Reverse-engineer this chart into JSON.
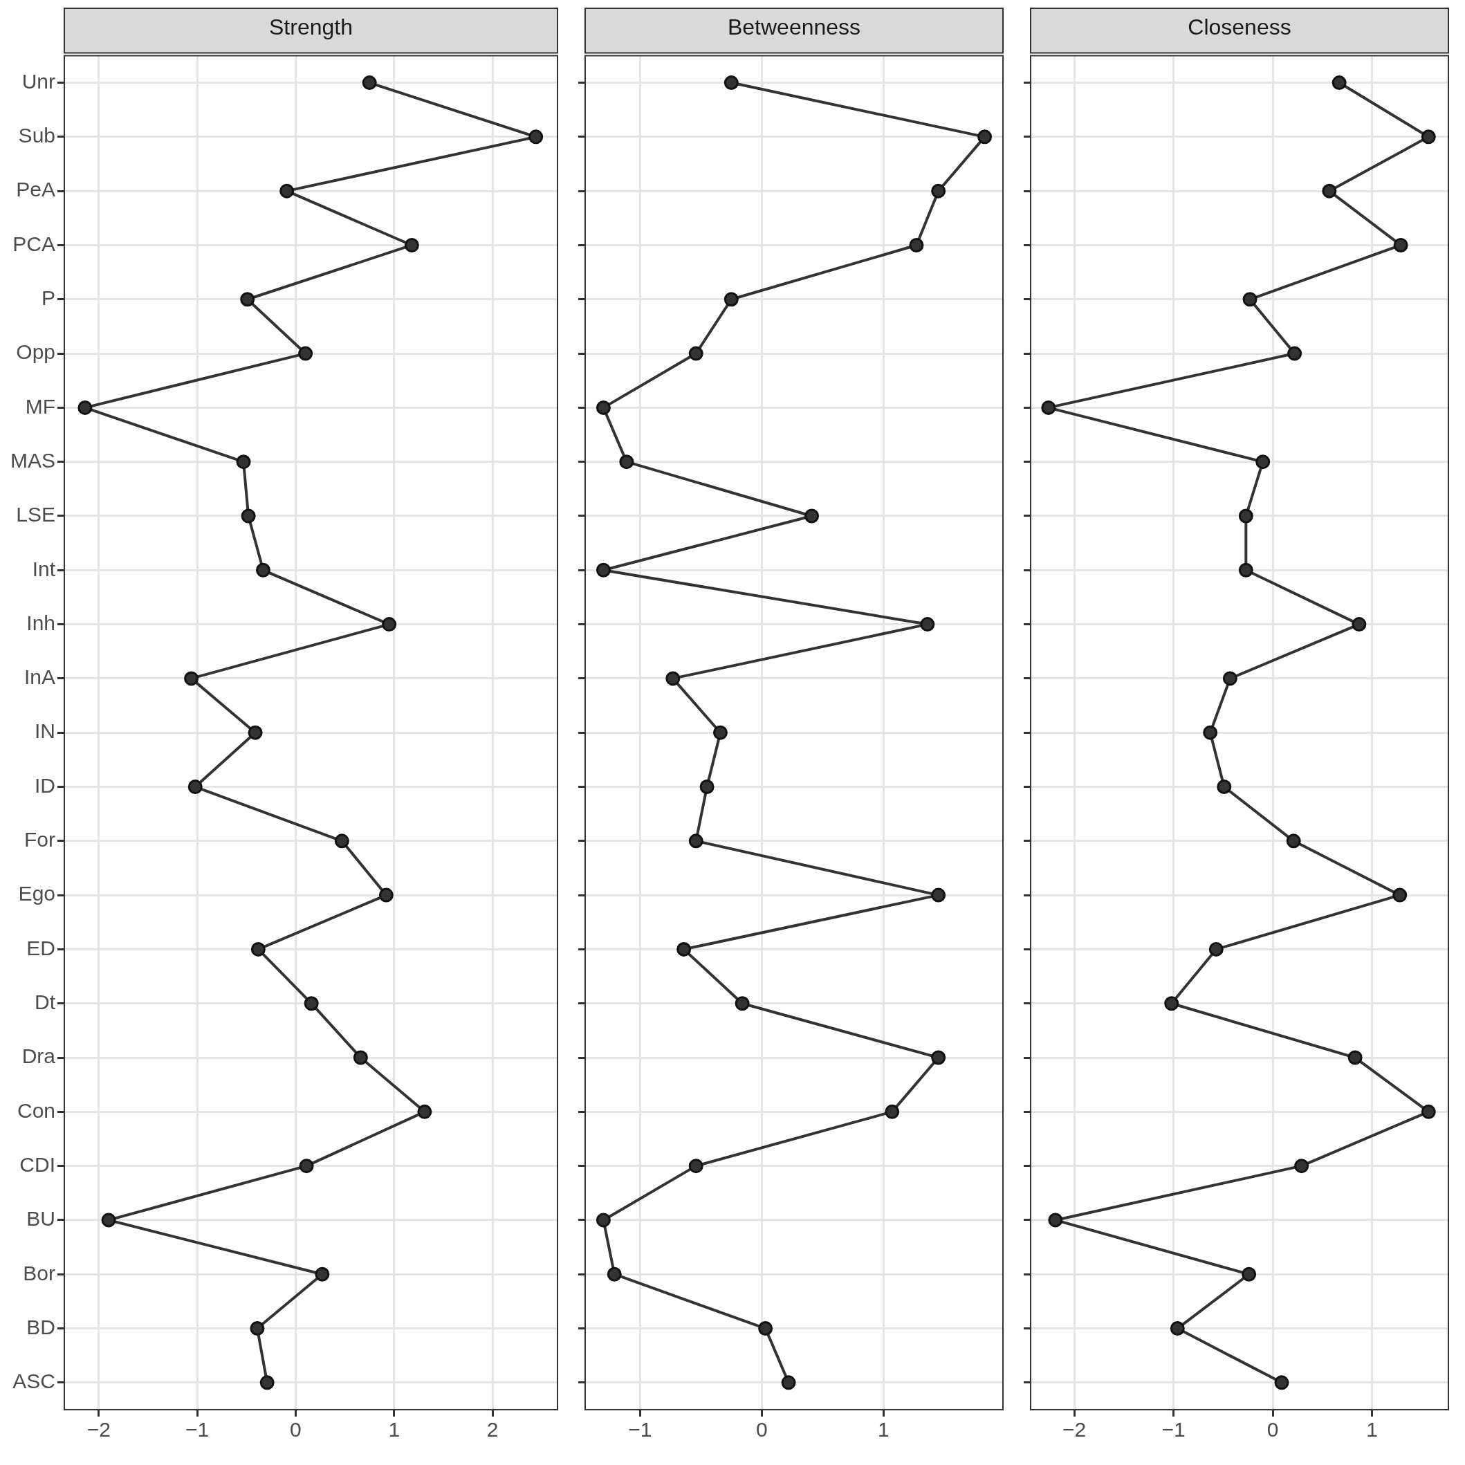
{
  "chart_data": [
    {
      "type": "line",
      "title": "Strength",
      "orientation": "horizontal",
      "categories": [
        "Unr",
        "Sub",
        "PeA",
        "PCA",
        "P",
        "Opp",
        "MF",
        "MAS",
        "LSE",
        "Int",
        "Inh",
        "InA",
        "IN",
        "ID",
        "For",
        "Ego",
        "ED",
        "Dt",
        "Dra",
        "Con",
        "CDI",
        "BU",
        "Bor",
        "BD",
        "ASC"
      ],
      "color": "#333333",
      "values": [
        0.75,
        2.44,
        -0.09,
        1.18,
        -0.49,
        0.1,
        -2.14,
        -0.53,
        -0.48,
        -0.33,
        0.95,
        -1.06,
        -0.41,
        -1.02,
        0.47,
        0.92,
        -0.38,
        0.16,
        0.66,
        1.31,
        0.11,
        -1.9,
        0.27,
        -0.39,
        -0.29
      ],
      "xlim": [
        -2.35,
        2.66
      ],
      "xticks": [
        -2,
        -1,
        0,
        1,
        2
      ],
      "grid": true,
      "marker": "circle"
    },
    {
      "type": "line",
      "title": "Betweenness",
      "orientation": "horizontal",
      "categories": [
        "Unr",
        "Sub",
        "PeA",
        "PCA",
        "P",
        "Opp",
        "MF",
        "MAS",
        "LSE",
        "Int",
        "Inh",
        "InA",
        "IN",
        "ID",
        "For",
        "Ego",
        "ED",
        "Dt",
        "Dra",
        "Con",
        "CDI",
        "BU",
        "Bor",
        "BD",
        "ASC"
      ],
      "color": "#333333",
      "values": [
        -0.25,
        1.83,
        1.45,
        1.27,
        -0.25,
        -0.54,
        -1.3,
        -1.11,
        0.41,
        -1.3,
        1.36,
        -0.73,
        -0.34,
        -0.45,
        -0.54,
        1.45,
        -0.64,
        -0.16,
        1.45,
        1.07,
        -0.54,
        -1.3,
        -1.21,
        0.03,
        0.22
      ],
      "xlim": [
        -1.45,
        1.98
      ],
      "xticks": [
        -1,
        0,
        1
      ],
      "grid": true,
      "marker": "circle",
      "tick_labels": "x"
    },
    {
      "type": "line",
      "title": "Closeness",
      "orientation": "horizontal",
      "categories": [
        "Unr",
        "Sub",
        "PeA",
        "PCA",
        "P",
        "Opp",
        "MF",
        "MAS",
        "LSE",
        "Int",
        "Inh",
        "InA",
        "IN",
        "ID",
        "For",
        "Ego",
        "ED",
        "Dt",
        "Dra",
        "Con",
        "CDI",
        "BU",
        "Bor",
        "BD",
        "ASC"
      ],
      "color": "#333333",
      "values": [
        0.67,
        1.57,
        0.57,
        1.29,
        -0.23,
        0.22,
        -2.26,
        -0.1,
        -0.27,
        -0.27,
        0.87,
        -0.43,
        -0.63,
        -0.49,
        0.21,
        1.28,
        -0.57,
        -1.02,
        0.83,
        1.57,
        0.29,
        -2.19,
        -0.24,
        -0.96,
        0.09
      ],
      "xlim": [
        -2.44,
        1.77
      ],
      "xticks": [
        -2,
        -1,
        0,
        1
      ],
      "grid": true,
      "marker": "circle",
      "tick_labels": "x"
    }
  ]
}
